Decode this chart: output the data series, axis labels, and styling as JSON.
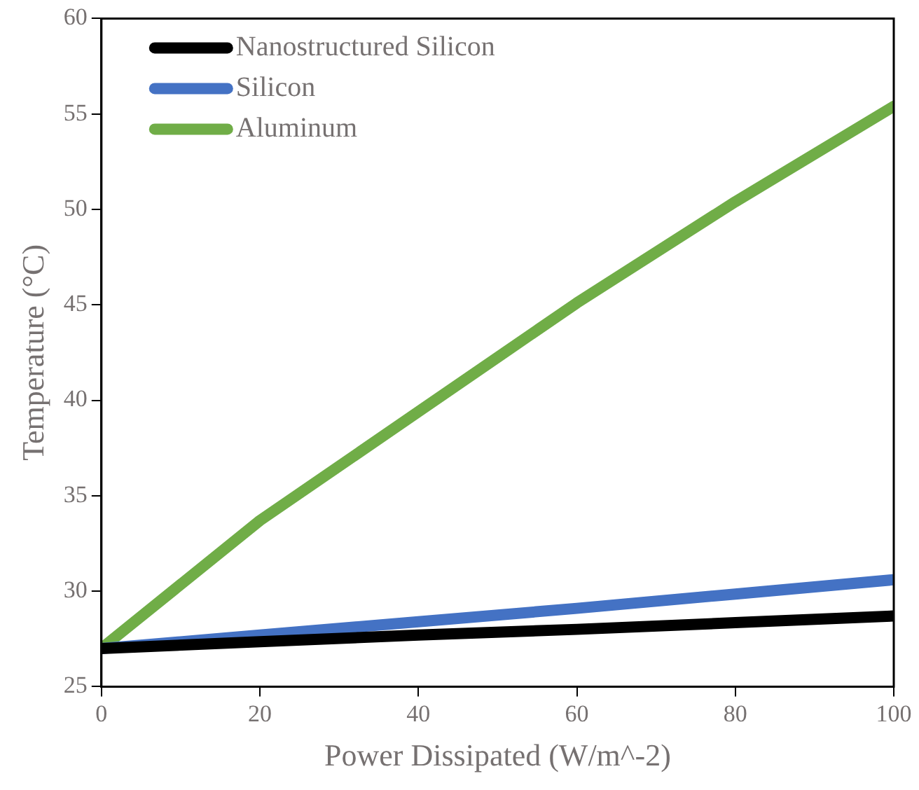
{
  "chart_data": {
    "type": "line",
    "xlabel": "Power Dissipated (W/m^-2)",
    "ylabel": "Temperature (°C)",
    "x": [
      0,
      20,
      40,
      60,
      80,
      100
    ],
    "series": [
      {
        "name": "Nanostructured Silicon",
        "color": "#000000",
        "values": [
          27.0,
          27.35,
          27.7,
          28.0,
          28.35,
          28.7
        ]
      },
      {
        "name": "Silicon",
        "color": "#4472c4",
        "values": [
          27.0,
          27.7,
          28.4,
          29.1,
          29.85,
          30.6
        ]
      },
      {
        "name": "Aluminum",
        "color": "#70ad47",
        "values": [
          27.0,
          33.7,
          39.4,
          45.1,
          50.4,
          55.4
        ]
      }
    ],
    "xlim": [
      0,
      100
    ],
    "xticks": [
      0,
      20,
      40,
      60,
      80,
      100
    ],
    "ylim": [
      25,
      60
    ],
    "yticks": [
      25,
      30,
      35,
      40,
      45,
      50,
      55,
      60
    ],
    "grid": false,
    "legend": "top left",
    "marker": "none",
    "line_style": "solid"
  }
}
